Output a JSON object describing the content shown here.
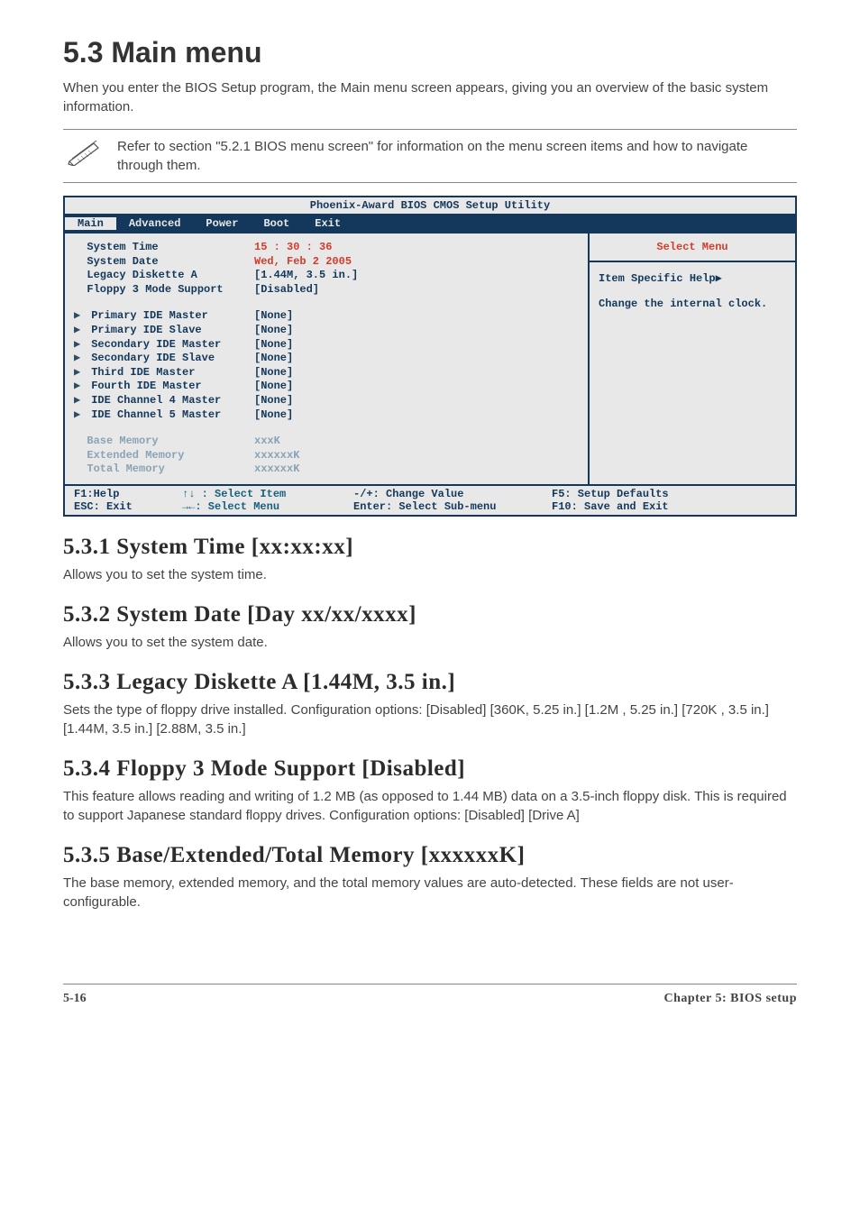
{
  "section": {
    "title": "5.3    Main menu",
    "intro": "When you enter the BIOS Setup program, the Main menu screen appears, giving you an overview of the basic system information."
  },
  "note": {
    "text": "Refer to section \"5.2.1  BIOS menu screen\" for information on the menu screen items and how to navigate through them."
  },
  "bios": {
    "title": "Phoenix-Award BIOS CMOS Setup Utility",
    "tabs": [
      "Main",
      "Advanced",
      "Power",
      "Boot",
      "Exit"
    ],
    "active_tab": 0,
    "rows": [
      {
        "label": "  System Time",
        "value": "15 : 30 : 36",
        "vclass": "highlight"
      },
      {
        "label": "  System Date",
        "value": "Wed, Feb 2 2005",
        "vclass": "highlight"
      },
      {
        "label": "  Legacy Diskette A",
        "value": "  [1.44M, 3.5 in.]",
        "vclass": ""
      },
      {
        "label": "  Floppy 3 Mode Support",
        "value": "  [Disabled]",
        "vclass": ""
      },
      {
        "spacer": true
      },
      {
        "tri": true,
        "label": "Primary IDE Master",
        "value": "  [None]",
        "vclass": ""
      },
      {
        "tri": true,
        "label": "Primary IDE Slave",
        "value": "  [None]",
        "vclass": ""
      },
      {
        "tri": true,
        "label": "Secondary IDE Master",
        "value": "  [None]",
        "vclass": ""
      },
      {
        "tri": true,
        "label": "Secondary IDE Slave",
        "value": "  [None]",
        "vclass": ""
      },
      {
        "tri": true,
        "label": "Third IDE Master",
        "value": "  [None]",
        "vclass": ""
      },
      {
        "tri": true,
        "label": "Fourth IDE Master",
        "value": "  [None]",
        "vclass": ""
      },
      {
        "tri": true,
        "label": "IDE Channel 4 Master",
        "value": "  [None]",
        "vclass": ""
      },
      {
        "tri": true,
        "label": "IDE Channel 5 Master",
        "value": "  [None]",
        "vclass": ""
      },
      {
        "spacer": true
      },
      {
        "label": "  Base Memory",
        "value": "    xxxK",
        "lclass": "dim",
        "vclass": "dim"
      },
      {
        "label": "  Extended Memory",
        "value": " xxxxxxK",
        "lclass": "dim",
        "vclass": "dim"
      },
      {
        "label": "  Total Memory",
        "value": " xxxxxxK",
        "lclass": "dim",
        "vclass": "dim"
      }
    ],
    "help": {
      "title": "Select Menu",
      "lines": [
        "Item Specific Help▶",
        "",
        "Change the internal clock."
      ]
    },
    "footer": [
      {
        "c1": "F1:Help",
        "c2": "↑↓ : Select Item",
        "c3": "-/+:  Change Value",
        "c4": "F5: Setup Defaults"
      },
      {
        "c1": "ESC: Exit",
        "c2": "→←: Select Menu",
        "c3": "Enter: Select Sub-menu",
        "c4": "F10: Save and Exit"
      }
    ]
  },
  "subs": [
    {
      "title": "5.3.1   System Time [xx:xx:xx]",
      "text": "Allows you to set the system time."
    },
    {
      "title": "5.3.2   System Date [Day xx/xx/xxxx]",
      "text": "Allows you to set the system date."
    },
    {
      "title": "5.3.3   Legacy Diskette A [1.44M, 3.5 in.]",
      "text": "Sets the type of floppy drive installed. Configuration options: [Disabled] [360K, 5.25 in.] [1.2M , 5.25 in.] [720K , 3.5 in.] [1.44M, 3.5 in.] [2.88M, 3.5 in.]"
    },
    {
      "title": "5.3.4   Floppy 3 Mode Support [Disabled]",
      "text": "This feature allows reading and writing of 1.2 MB (as opposed to 1.44 MB) data on a 3.5-inch floppy disk. This is required to support Japanese standard floppy drives. Configuration options: [Disabled] [Drive A]"
    },
    {
      "title": "5.3.5   Base/Extended/Total Memory [xxxxxxK]",
      "text": "The base memory, extended memory, and the total memory values are auto-detected. These fields are not user-configurable."
    }
  ],
  "footer": {
    "left": "5-16",
    "right": "Chapter 5: BIOS setup"
  }
}
